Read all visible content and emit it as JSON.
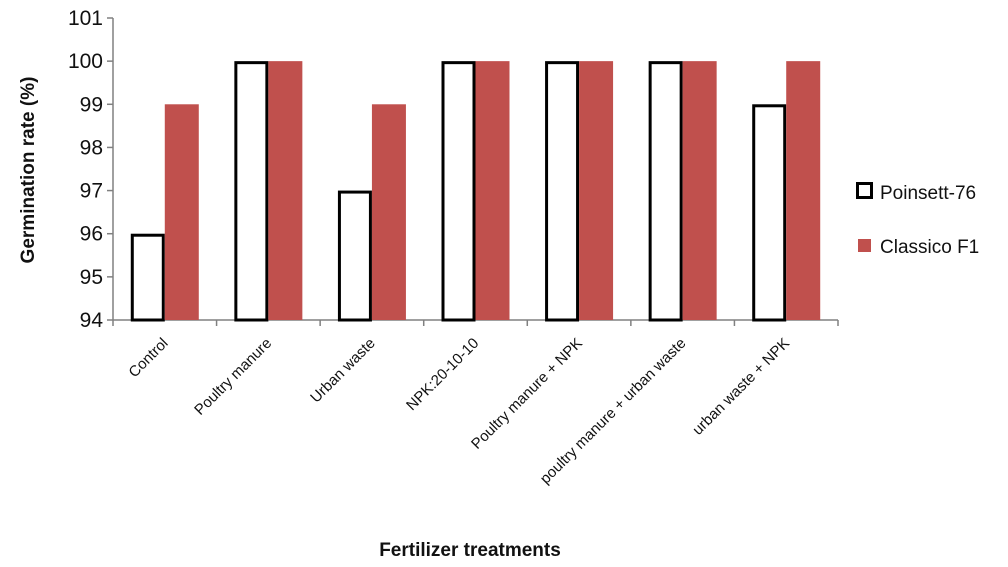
{
  "chart_data": {
    "type": "bar",
    "xlabel": "Fertilizer treatments",
    "ylabel": "Germination rate (%)",
    "ylim": [
      94,
      101
    ],
    "yticks": [
      94,
      95,
      96,
      97,
      98,
      99,
      100,
      101
    ],
    "grid": false,
    "legend_position": "right",
    "categories": [
      "Control",
      "Poultry manure",
      "Urban waste",
      "NPK:20-10-10",
      "Poultry manure + NPK",
      "poultry manure + urban waste",
      "urban waste + NPK"
    ],
    "series": [
      {
        "name": "Poinsett-76",
        "values": [
          96,
          100,
          97,
          100,
          100,
          100,
          99
        ],
        "fill": "#ffffff",
        "stroke": "#000000"
      },
      {
        "name": "Classico F1",
        "values": [
          99,
          100,
          99,
          100,
          100,
          100,
          100
        ],
        "fill": "#c0504d",
        "stroke": "#c0504d"
      }
    ]
  }
}
